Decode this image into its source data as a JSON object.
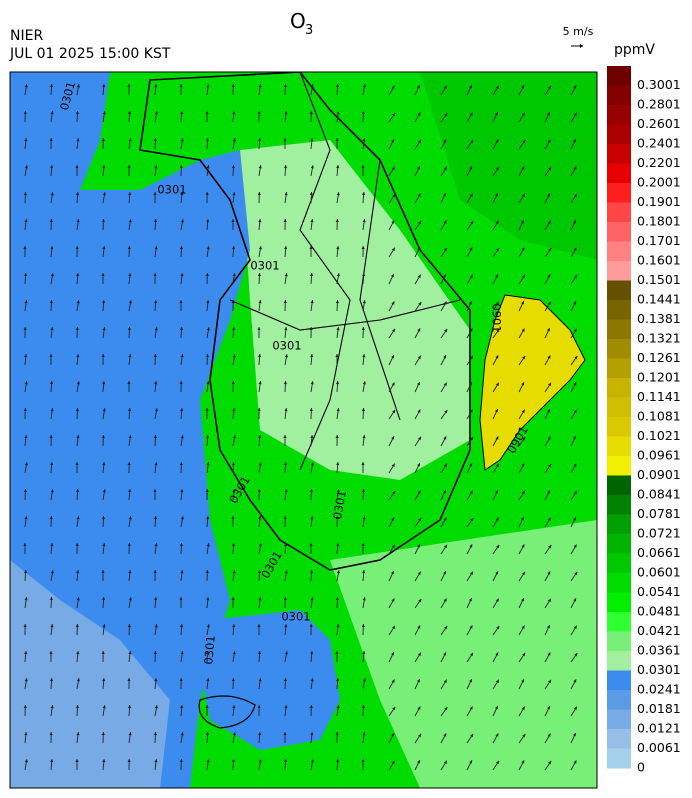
{
  "header": {
    "org": "NIER",
    "datetime": "JUL 01 2025 15:00 KST",
    "title": "O",
    "title_subscript": "3",
    "wind_reference": "5 m/s",
    "unit": "ppmV"
  },
  "colorbar": {
    "levels": [
      0.3001,
      0.2801,
      0.2601,
      0.2401,
      0.2201,
      0.2001,
      0.1901,
      0.1801,
      0.1701,
      0.1601,
      0.1501,
      0.1441,
      0.1381,
      0.1321,
      0.1261,
      0.1201,
      0.1141,
      0.1081,
      0.1021,
      0.0961,
      0.0901,
      0.0841,
      0.0781,
      0.0721,
      0.0661,
      0.0601,
      0.0541,
      0.0481,
      0.0421,
      0.0361,
      0.0301,
      0.0241,
      0.0181,
      0.0121,
      0.0061,
      0
    ],
    "colors": [
      "#6e0000",
      "#820000",
      "#960000",
      "#aa0000",
      "#c80000",
      "#e60000",
      "#ff1e1e",
      "#ff4646",
      "#ff6464",
      "#ff8282",
      "#ff9b9b",
      "#645000",
      "#786400",
      "#8c7800",
      "#a08c00",
      "#b4a000",
      "#c8b400",
      "#d2be00",
      "#dcc800",
      "#e6dc00",
      "#f0f000",
      "#006400",
      "#008200",
      "#00a000",
      "#00b400",
      "#00c800",
      "#00dc00",
      "#00f000",
      "#32ff32",
      "#78f078",
      "#a0f0a0",
      "#3c8cf0",
      "#5a9be6",
      "#78aae6",
      "#96bee6",
      "#a5d0eb"
    ]
  },
  "contour_labels": [
    "0301",
    "0301",
    "0301",
    "0301",
    "0301",
    "0301",
    "0301",
    "0301",
    "0301",
    "0901",
    "0901"
  ]
}
